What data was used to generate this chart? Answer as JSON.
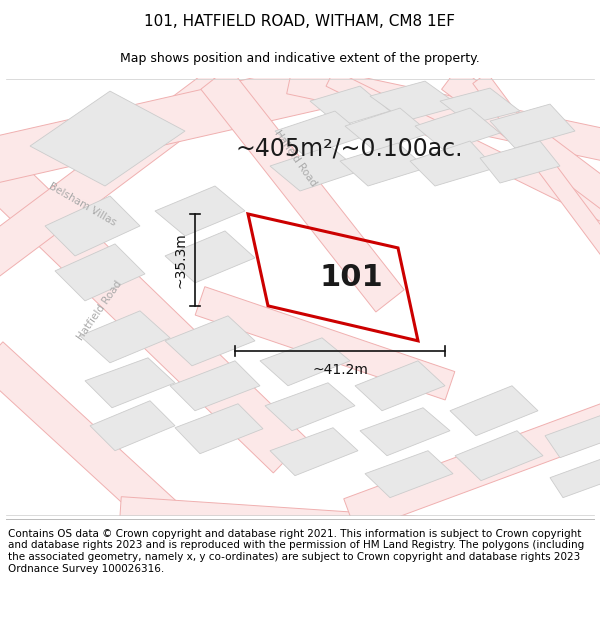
{
  "title": "101, HATFIELD ROAD, WITHAM, CM8 1EF",
  "subtitle": "Map shows position and indicative extent of the property.",
  "footer": "Contains OS data © Crown copyright and database right 2021. This information is subject to Crown copyright and database rights 2023 and is reproduced with the permission of HM Land Registry. The polygons (including the associated geometry, namely x, y co-ordinates) are subject to Crown copyright and database rights 2023 Ordnance Survey 100026316.",
  "area_label": "~405m²/~0.100ac.",
  "property_label": "101",
  "dim_width": "~41.2m",
  "dim_height": "~35.3m",
  "map_bg": "#fafafa",
  "road_fill": "#fce8e8",
  "road_edge": "#f0b0b0",
  "block_fill": "#e8e8e8",
  "block_edge": "#cccccc",
  "property_edge": "#cc0000",
  "property_edge_width": 2.2,
  "dim_color": "#111111",
  "title_fontsize": 11,
  "subtitle_fontsize": 9,
  "footer_fontsize": 7.5,
  "area_fontsize": 17,
  "label_fontsize": 22,
  "dim_fontsize": 10
}
